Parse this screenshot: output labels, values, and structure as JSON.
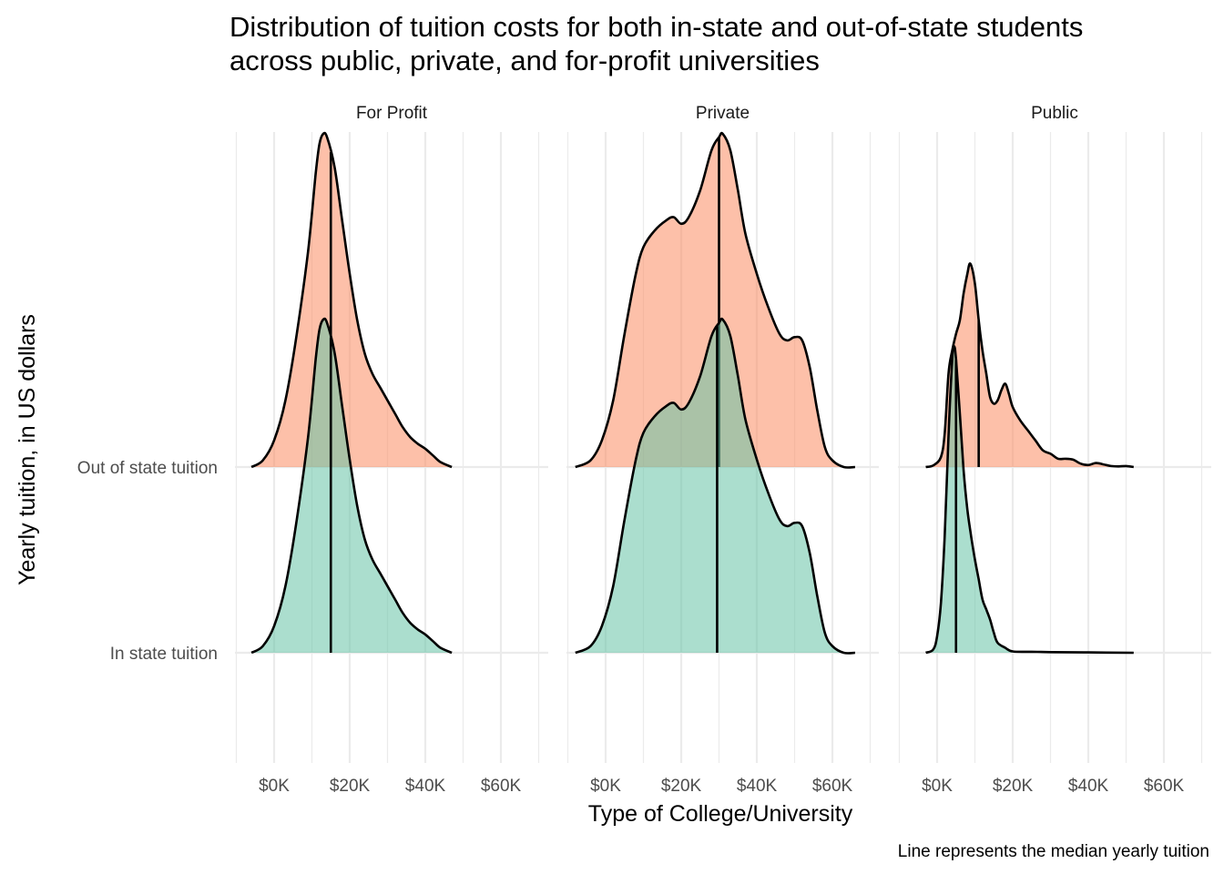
{
  "chart_data": {
    "type": "ridgeline",
    "title": "Distribution of tuition costs for both in-state and out-of-state students across public, private, and for-profit universities",
    "title_lines": [
      "Distribution of tuition costs for both in-state and out-of-state students",
      "across public, private, and for-profit universities"
    ],
    "xlabel": "Type of College/University",
    "ylabel": "Yearly tuition, in US dollars",
    "caption": "Line represents the median yearly tuition",
    "x_unit": "USD thousands",
    "xlim": [
      -10,
      75
    ],
    "x_ticks": [
      0,
      20,
      40,
      60
    ],
    "x_tick_labels": [
      "$0K",
      "$20K",
      "$40K",
      "$60K"
    ],
    "y_categories": [
      "In state tuition",
      "Out of state tuition"
    ],
    "grid": true,
    "colors": {
      "In state tuition": "#66c2a5",
      "Out of state tuition": "#fc8d62"
    },
    "facets": [
      {
        "name": "For Profit",
        "series": [
          {
            "name": "Out of state tuition",
            "median": 15,
            "density": [
              [
                -6,
                0
              ],
              [
                -3,
                0.02
              ],
              [
                0,
                0.08
              ],
              [
                3,
                0.2
              ],
              [
                6,
                0.4
              ],
              [
                9,
                0.65
              ],
              [
                11,
                0.88
              ],
              [
                12,
                0.97
              ],
              [
                13,
                1.0
              ],
              [
                14,
                0.99
              ],
              [
                16,
                0.9
              ],
              [
                18,
                0.74
              ],
              [
                20,
                0.58
              ],
              [
                22,
                0.44
              ],
              [
                24,
                0.34
              ],
              [
                26,
                0.28
              ],
              [
                28,
                0.24
              ],
              [
                30,
                0.2
              ],
              [
                32,
                0.16
              ],
              [
                34,
                0.12
              ],
              [
                36,
                0.09
              ],
              [
                38,
                0.07
              ],
              [
                40,
                0.055
              ],
              [
                42,
                0.035
              ],
              [
                44,
                0.015
              ],
              [
                47,
                0
              ]
            ]
          },
          {
            "name": "In state tuition",
            "median": 15,
            "density": [
              [
                -6,
                0
              ],
              [
                -3,
                0.02
              ],
              [
                0,
                0.08
              ],
              [
                3,
                0.2
              ],
              [
                6,
                0.4
              ],
              [
                9,
                0.65
              ],
              [
                11,
                0.88
              ],
              [
                12,
                0.97
              ],
              [
                13,
                1.0
              ],
              [
                14,
                0.99
              ],
              [
                16,
                0.9
              ],
              [
                18,
                0.74
              ],
              [
                20,
                0.58
              ],
              [
                22,
                0.44
              ],
              [
                24,
                0.34
              ],
              [
                26,
                0.28
              ],
              [
                28,
                0.24
              ],
              [
                30,
                0.2
              ],
              [
                32,
                0.16
              ],
              [
                34,
                0.12
              ],
              [
                36,
                0.09
              ],
              [
                38,
                0.07
              ],
              [
                40,
                0.055
              ],
              [
                42,
                0.035
              ],
              [
                44,
                0.015
              ],
              [
                47,
                0
              ]
            ]
          }
        ]
      },
      {
        "name": "Private",
        "series": [
          {
            "name": "Out of state tuition",
            "median": 30,
            "density": [
              [
                -8,
                0
              ],
              [
                -4,
                0.02
              ],
              [
                -1,
                0.08
              ],
              [
                2,
                0.2
              ],
              [
                5,
                0.4
              ],
              [
                8,
                0.58
              ],
              [
                10,
                0.66
              ],
              [
                13,
                0.71
              ],
              [
                16,
                0.74
              ],
              [
                18,
                0.75
              ],
              [
                20,
                0.73
              ],
              [
                22,
                0.75
              ],
              [
                25,
                0.83
              ],
              [
                28,
                0.95
              ],
              [
                30,
                0.99
              ],
              [
                31,
                1.0
              ],
              [
                33,
                0.95
              ],
              [
                35,
                0.83
              ],
              [
                37,
                0.7
              ],
              [
                40,
                0.58
              ],
              [
                43,
                0.48
              ],
              [
                46,
                0.4
              ],
              [
                48,
                0.38
              ],
              [
                50,
                0.39
              ],
              [
                52,
                0.38
              ],
              [
                54,
                0.3
              ],
              [
                56,
                0.17
              ],
              [
                58,
                0.06
              ],
              [
                60,
                0.02
              ],
              [
                63,
                0
              ],
              [
                66,
                0
              ]
            ]
          },
          {
            "name": "In state tuition",
            "median": 29.5,
            "density": [
              [
                -8,
                0
              ],
              [
                -4,
                0.02
              ],
              [
                -1,
                0.08
              ],
              [
                2,
                0.2
              ],
              [
                5,
                0.4
              ],
              [
                8,
                0.58
              ],
              [
                10,
                0.66
              ],
              [
                13,
                0.71
              ],
              [
                16,
                0.74
              ],
              [
                18,
                0.75
              ],
              [
                20,
                0.73
              ],
              [
                22,
                0.75
              ],
              [
                25,
                0.83
              ],
              [
                28,
                0.95
              ],
              [
                30,
                0.99
              ],
              [
                31,
                1.0
              ],
              [
                33,
                0.95
              ],
              [
                35,
                0.83
              ],
              [
                37,
                0.7
              ],
              [
                40,
                0.58
              ],
              [
                43,
                0.48
              ],
              [
                46,
                0.4
              ],
              [
                48,
                0.38
              ],
              [
                50,
                0.39
              ],
              [
                52,
                0.38
              ],
              [
                54,
                0.3
              ],
              [
                56,
                0.17
              ],
              [
                58,
                0.06
              ],
              [
                60,
                0.02
              ],
              [
                63,
                0
              ],
              [
                66,
                0
              ]
            ]
          }
        ]
      },
      {
        "name": "Public",
        "series": [
          {
            "name": "Out of state tuition",
            "median": 11,
            "density": [
              [
                -3,
                0
              ],
              [
                -1,
                0.005
              ],
              [
                1,
                0.03
              ],
              [
                2,
                0.1
              ],
              [
                3,
                0.28
              ],
              [
                4,
                0.35
              ],
              [
                5,
                0.4
              ],
              [
                6,
                0.44
              ],
              [
                7,
                0.52
              ],
              [
                8,
                0.58
              ],
              [
                8.8,
                0.61
              ],
              [
                10,
                0.55
              ],
              [
                11,
                0.44
              ],
              [
                12,
                0.35
              ],
              [
                13,
                0.28
              ],
              [
                14,
                0.21
              ],
              [
                15,
                0.19
              ],
              [
                16,
                0.2
              ],
              [
                17,
                0.23
              ],
              [
                18,
                0.25
              ],
              [
                19,
                0.22
              ],
              [
                20,
                0.18
              ],
              [
                22,
                0.14
              ],
              [
                24,
                0.11
              ],
              [
                26,
                0.08
              ],
              [
                28,
                0.05
              ],
              [
                30,
                0.04
              ],
              [
                32,
                0.025
              ],
              [
                34,
                0.025
              ],
              [
                36,
                0.022
              ],
              [
                38,
                0.01
              ],
              [
                40,
                0.006
              ],
              [
                42,
                0.012
              ],
              [
                44,
                0.008
              ],
              [
                46,
                0.003
              ],
              [
                48,
                0.002
              ],
              [
                50,
                0.003
              ],
              [
                52,
                0
              ]
            ]
          },
          {
            "name": "In state tuition",
            "median": 5,
            "density": [
              [
                -3,
                0
              ],
              [
                -1,
                0.01
              ],
              [
                0,
                0.05
              ],
              [
                1,
                0.15
              ],
              [
                2,
                0.35
              ],
              [
                3,
                0.65
              ],
              [
                4,
                0.88
              ],
              [
                4.5,
                0.92
              ],
              [
                5,
                0.88
              ],
              [
                6,
                0.72
              ],
              [
                7,
                0.55
              ],
              [
                8,
                0.43
              ],
              [
                9,
                0.35
              ],
              [
                10,
                0.28
              ],
              [
                11,
                0.22
              ],
              [
                12,
                0.16
              ],
              [
                13,
                0.13
              ],
              [
                14,
                0.1
              ],
              [
                15,
                0.06
              ],
              [
                16,
                0.03
              ],
              [
                18,
                0.015
              ],
              [
                20,
                0.004
              ],
              [
                25,
                0.003
              ],
              [
                30,
                0.002
              ],
              [
                40,
                0.001
              ],
              [
                52,
                0
              ]
            ]
          }
        ]
      }
    ]
  }
}
